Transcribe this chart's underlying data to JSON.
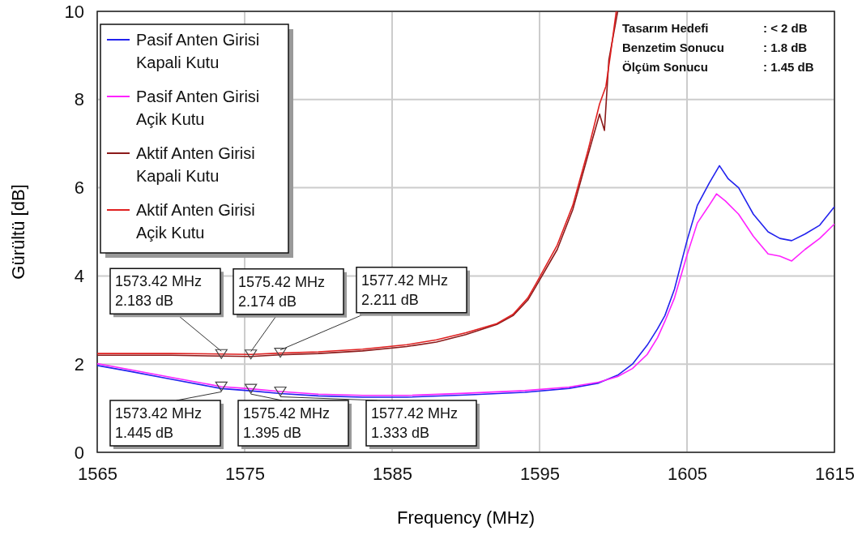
{
  "chart_data": {
    "type": "line",
    "xlabel": "Frequency (MHz)",
    "ylabel": "Gürültü [dB]",
    "xlim": [
      1565,
      1615
    ],
    "xticks": [
      1565,
      1575,
      1585,
      1595,
      1605,
      1615
    ],
    "ylim": [
      0,
      10
    ],
    "yticks": [
      0,
      2,
      4,
      6,
      8,
      10
    ],
    "grid": true,
    "legend": "top left",
    "line_style": "solid",
    "marker": "none",
    "series": [
      {
        "name": "Pasif Anten Girisi Kapali Kutu",
        "color": "#2222ee",
        "x": [
          1565,
          1567,
          1570,
          1573.42,
          1575.42,
          1577.42,
          1580,
          1583,
          1586,
          1590,
          1594,
          1597,
          1599,
          1600.3,
          1601.3,
          1602.3,
          1603,
          1603.5,
          1604.15,
          1605,
          1605.7,
          1606.5,
          1607.2,
          1607.8,
          1608.5,
          1609.5,
          1610.5,
          1611.3,
          1612.1,
          1613,
          1614,
          1615
        ],
        "values": [
          1.97,
          1.85,
          1.66,
          1.445,
          1.395,
          1.333,
          1.28,
          1.25,
          1.25,
          1.3,
          1.36,
          1.45,
          1.57,
          1.75,
          2.0,
          2.43,
          2.8,
          3.1,
          3.7,
          4.8,
          5.6,
          6.1,
          6.5,
          6.2,
          6.0,
          5.4,
          5.0,
          4.85,
          4.8,
          4.95,
          5.15,
          5.57
        ]
      },
      {
        "name": "Pasif Anten Girisi Açik Kutu",
        "color": "#ff22ff",
        "x": [
          1565,
          1567,
          1570,
          1573.42,
          1575.42,
          1577.42,
          1580,
          1583,
          1586,
          1590,
          1594,
          1597,
          1599,
          1600.3,
          1601.3,
          1602.3,
          1603,
          1603.5,
          1604.15,
          1605,
          1605.7,
          1606.5,
          1607,
          1607.6,
          1608.5,
          1609.5,
          1610.5,
          1611.3,
          1612.1,
          1613,
          1614,
          1615
        ],
        "values": [
          2.01,
          1.89,
          1.7,
          1.49,
          1.44,
          1.38,
          1.32,
          1.29,
          1.29,
          1.34,
          1.4,
          1.48,
          1.59,
          1.72,
          1.9,
          2.22,
          2.6,
          2.97,
          3.5,
          4.47,
          5.2,
          5.6,
          5.86,
          5.7,
          5.4,
          4.9,
          4.5,
          4.45,
          4.34,
          4.6,
          4.85,
          5.18
        ]
      },
      {
        "name": "Aktif Anten Girisi Kapali Kutu",
        "color": "#8b1a1a",
        "x": [
          1565,
          1570,
          1573.42,
          1575.42,
          1577.42,
          1580,
          1583,
          1586,
          1588,
          1590,
          1592.1,
          1593.2,
          1594.2,
          1594.8,
          1596.2,
          1597.25,
          1598.25,
          1599.07,
          1599.4,
          1599.7,
          1600.3
        ],
        "values": [
          2.2,
          2.2,
          2.183,
          2.174,
          2.211,
          2.24,
          2.3,
          2.4,
          2.5,
          2.67,
          2.9,
          3.1,
          3.45,
          3.79,
          4.6,
          5.5,
          6.7,
          7.67,
          7.3,
          8.9,
          10
        ]
      },
      {
        "name": "Aktif Anten Girisi Açik Kutu",
        "color": "#e02020",
        "x": [
          1565,
          1570,
          1573.42,
          1575.42,
          1577.42,
          1580,
          1583,
          1586,
          1588,
          1590,
          1592.1,
          1593.2,
          1594.2,
          1594.8,
          1596.2,
          1597.25,
          1598.25,
          1599.07,
          1599.5,
          1599.8,
          1600.2
        ],
        "values": [
          2.24,
          2.24,
          2.23,
          2.22,
          2.25,
          2.28,
          2.34,
          2.44,
          2.55,
          2.71,
          2.92,
          3.13,
          3.5,
          3.85,
          4.7,
          5.6,
          6.8,
          7.9,
          8.3,
          9.0,
          10
        ]
      }
    ],
    "annotations": [
      {
        "text": "1573.42 MHz\n2.183 dB",
        "x": 1573.42,
        "y": 2.183
      },
      {
        "text": "1575.42 MHz\n2.174 dB",
        "x": 1575.42,
        "y": 2.174
      },
      {
        "text": "1577.42 MHz\n2.211 dB",
        "x": 1577.42,
        "y": 2.211
      },
      {
        "text": "1573.42 MHz\n1.445 dB",
        "x": 1573.42,
        "y": 1.445
      },
      {
        "text": "1575.42 MHz\n1.395 dB",
        "x": 1575.42,
        "y": 1.395
      },
      {
        "text": "1577.42 MHz\n1.333 dB",
        "x": 1577.42,
        "y": 1.333
      },
      "Tasarım Hedefi : < 2 dB",
      "Benzetim Sonucu : 1.8 dB",
      "Ölçüm Sonucu : 1.45 dB"
    ]
  }
}
